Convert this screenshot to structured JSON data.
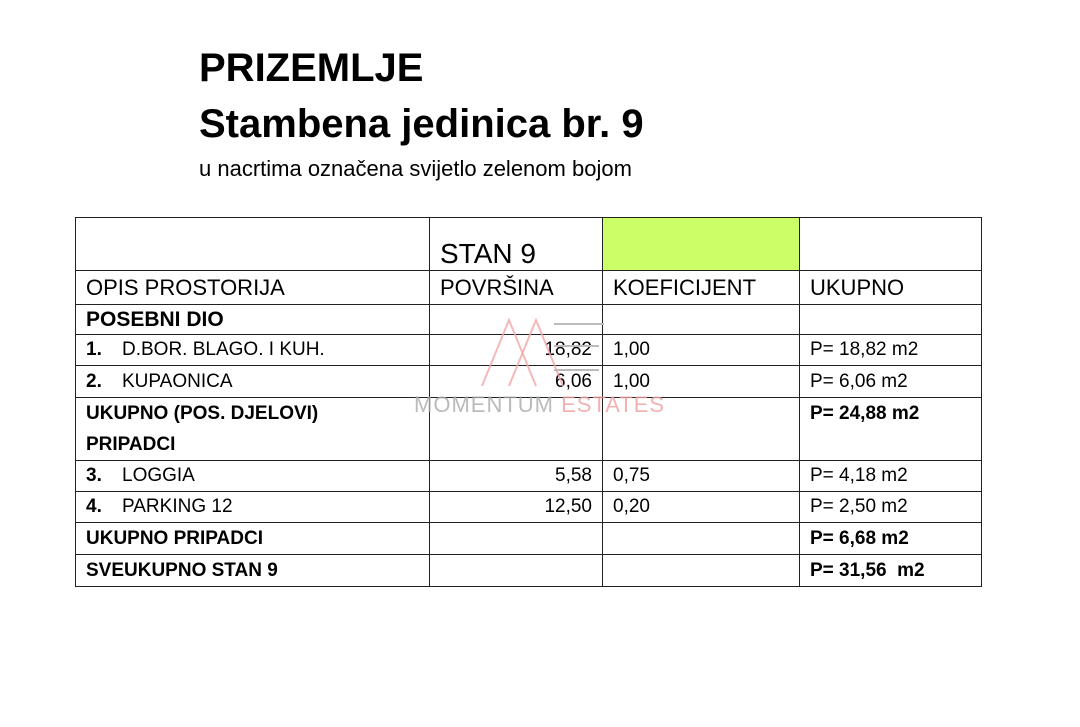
{
  "title": "PRIZEMLJE",
  "subtitle": "Stambena jedinica br. 9",
  "note": "u nacrtima označena svijetlo zelenom bojom",
  "table": {
    "unit_label": "STAN 9",
    "unit_color": "#ccff66",
    "headers": [
      "OPIS PROSTORIJA",
      "POVRŠINA",
      "KOEFICIJENT",
      "UKUPNO"
    ],
    "section1": "POSEBNI DIO",
    "rows1": [
      {
        "no": "1.",
        "name": "D.BOR. BLAGO. I KUH.",
        "area": "18,82",
        "coef": "1,00",
        "total": "P= 18,82 m2"
      },
      {
        "no": "2.",
        "name": "KUPAONICA",
        "area": "6,06",
        "coef": "1,00",
        "total": "P= 6,06 m2"
      }
    ],
    "subtotal1_label": "UKUPNO (POS. DJELOVI)",
    "subtotal1_value": "P= 24,88 m2",
    "section2": "PRIPADCI",
    "rows2": [
      {
        "no": "3.",
        "name": "LOGGIA",
        "area": "5,58",
        "coef": "0,75",
        "total": "P= 4,18 m2"
      },
      {
        "no": "4.",
        "name": "PARKING 12",
        "area": "12,50",
        "coef": "0,20",
        "total": "P= 2,50 m2"
      }
    ],
    "subtotal2_label": "UKUPNO PRIPADCI",
    "subtotal2_value": "P= 6,68 m2",
    "total_label": "SVEUKUPNO STAN 9",
    "total_value": "P= 31,56  m2"
  },
  "watermark": {
    "word1": "MOMENTUM",
    "word2": "ESTATES"
  }
}
